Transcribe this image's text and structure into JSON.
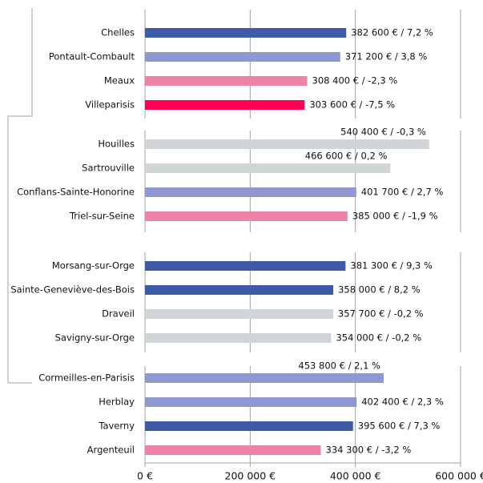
{
  "chart_data": {
    "type": "bar",
    "orientation": "horizontal",
    "categories": [
      "Chelles",
      "Pontault-Combault",
      "Meaux",
      "Villeparisis",
      "Houilles",
      "Sartrouville",
      "Conflans-Sainte-Honorine",
      "Triel-sur-Seine",
      "Morsang-sur-Orge",
      "Sainte-Geneviève-des-Bois",
      "Draveil",
      "Savigny-sur-Orge",
      "Cormeilles-en-Parisis",
      "Herblay",
      "Taverny",
      "Argenteuil"
    ],
    "values": [
      382600,
      371200,
      308400,
      303600,
      540400,
      466600,
      401700,
      385000,
      381300,
      358000,
      357700,
      354000,
      453800,
      402400,
      395600,
      334300
    ],
    "value_labels": [
      "382 600 € / 7,2 %",
      "371 200 € / 3,8 %",
      "308 400 € / -2,3 %",
      "303 600 € / -7,5 %",
      "540 400 € / -0,3 %",
      "466 600 € / 0,2 %",
      "401 700 € / 2,7 %",
      "385 000 € / -1,9 %",
      "381 300 € / 9,3 %",
      "358 000 € / 8,2 %",
      "357 700 € / -0,2 %",
      "354 000 € / -0,2 %",
      "453 800 € / 2,1 %",
      "402 400 € / 2,3 %",
      "395 600 € / 7,3 %",
      "334 300 € / -3,2 %"
    ],
    "colors": [
      "#3d5ba6",
      "#8f99cf",
      "#ee82a8",
      "#ff0055",
      "#d0d5d8",
      "#d0d5d8",
      "#8f99cf",
      "#ee82a8",
      "#3d5ba6",
      "#3d5ba6",
      "#d0d5d8",
      "#d0d5d8",
      "#8f99cf",
      "#8f99cf",
      "#3d5ba6",
      "#ee82a8"
    ],
    "xlim": [
      0,
      600000
    ],
    "xticks": [
      {
        "value": 0,
        "label": "0 €"
      },
      {
        "value": 200000,
        "label": "200 000 €"
      },
      {
        "value": 400000,
        "label": "400 000 €"
      },
      {
        "value": 600000,
        "label": "600 000 €"
      }
    ],
    "grid": true
  }
}
